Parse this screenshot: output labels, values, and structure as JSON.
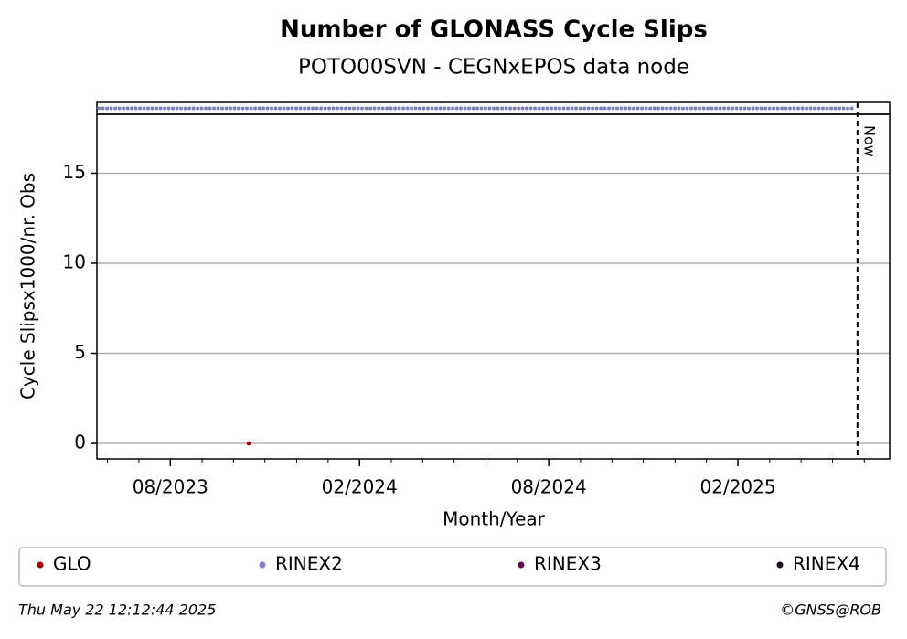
{
  "chart_data": {
    "type": "scatter",
    "title": "Number of GLONASS Cycle Slips",
    "subtitle": "POTO00SVN - CEGNxEPOS data node",
    "x_label": "Month/Year",
    "y_label": "Cycle Slipsx1000/nr. Obs",
    "xlim": [
      2023.389,
      2025.484
    ],
    "ylim": [
      -0.86,
      18.27
    ],
    "yticks": [
      0,
      5,
      10,
      15
    ],
    "xticks": [
      {
        "value": 2023.583,
        "label": "08/2023"
      },
      {
        "value": 2024.083,
        "label": "02/2024"
      },
      {
        "value": 2024.583,
        "label": "08/2024"
      },
      {
        "value": 2025.083,
        "label": "02/2025"
      }
    ],
    "xminorticks": [
      2023.417,
      2023.5,
      2023.667,
      2023.75,
      2023.833,
      2023.917,
      2024.0,
      2024.167,
      2024.25,
      2024.333,
      2024.417,
      2024.5,
      2024.667,
      2024.75,
      2024.833,
      2024.917,
      2025.0,
      2025.167,
      2025.25,
      2025.333,
      2025.417
    ],
    "grid": true,
    "series": [
      {
        "name": "GLO",
        "color": "#aa0000",
        "x": [
          2023.79
        ],
        "values": [
          0
        ]
      },
      {
        "name": "RINEX2",
        "color": "#7f7fbf",
        "strip_x": [
          2023.394,
          2025.389
        ]
      },
      {
        "name": "RINEX3",
        "color": "#6a0050",
        "x": [],
        "values": []
      },
      {
        "name": "RINEX4",
        "color": "#1a0820",
        "x": [],
        "values": []
      }
    ],
    "now": {
      "x": 2025.399,
      "label": "Now"
    },
    "timestamp": "Thu May 22 12:12:44 2025",
    "credit": "©GNSS@ROB"
  }
}
